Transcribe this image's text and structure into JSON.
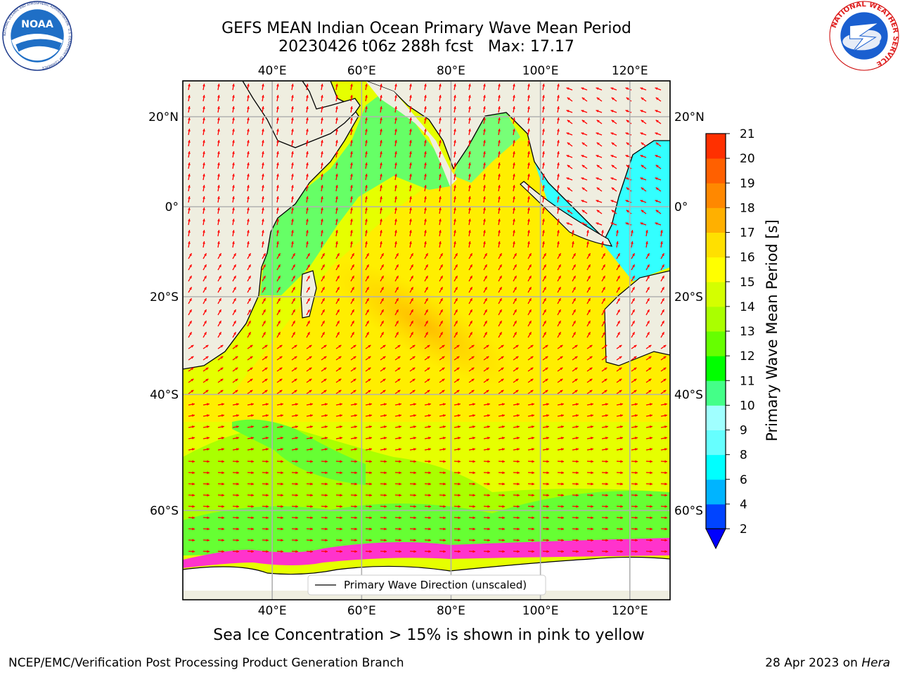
{
  "header": {
    "title_line1": "GEFS MEAN Indian Ocean Primary Wave Mean Period",
    "title_line2": "20230426 t06z 288h fcst   Max: 17.17"
  },
  "logos": {
    "left": {
      "name": "noaa-logo",
      "text": "NOAA",
      "ring_text": "NATIONAL OCEANIC AND ATMOSPHERIC ADMINISTRATION · U.S. DEPARTMENT OF COMMERCE"
    },
    "right": {
      "name": "nws-logo",
      "ring_text": "NATIONAL WEATHER SERVICE"
    }
  },
  "map": {
    "lon_range": [
      20,
      129
    ],
    "lat_range": [
      -73,
      23
    ],
    "lon_ticks": [
      "40°E",
      "60°E",
      "80°E",
      "100°E",
      "120°E"
    ],
    "lon_tick_values": [
      40,
      60,
      80,
      100,
      120
    ],
    "lat_ticks": [
      "20°N",
      "0°",
      "20°S",
      "40°S",
      "60°S"
    ],
    "lat_tick_values": [
      20,
      0,
      -20,
      -40,
      -60
    ],
    "legend_label": "Primary Wave Direction (unscaled)",
    "arrow_color": "#ff0000",
    "land_color": "#efeee0",
    "ice_color": "#ff33cc"
  },
  "colorbar": {
    "title": "Primary Wave Mean Period [s]",
    "tick_labels": [
      "2",
      "4",
      "6",
      "8",
      "9",
      "10",
      "11",
      "12",
      "13",
      "14",
      "15",
      "16",
      "17",
      "18",
      "19",
      "20",
      "21"
    ],
    "colors": [
      "#0044ff",
      "#00b4ff",
      "#00ffff",
      "#66ffff",
      "#a0ffff",
      "#44ff88",
      "#00ff00",
      "#66ff00",
      "#aaff00",
      "#d4ff00",
      "#ffff00",
      "#ffe000",
      "#ffb000",
      "#ff8800",
      "#ff6000",
      "#ff3000",
      "#ff0000"
    ],
    "extend_color": "#0000ff"
  },
  "caption": "Sea Ice Concentration > 15% is shown in pink to yellow",
  "footer": {
    "left": "NCEP/EMC/Verification Post Processing Product Generation Branch",
    "right_date": "28 Apr 2023 on ",
    "right_host": "Hera"
  }
}
